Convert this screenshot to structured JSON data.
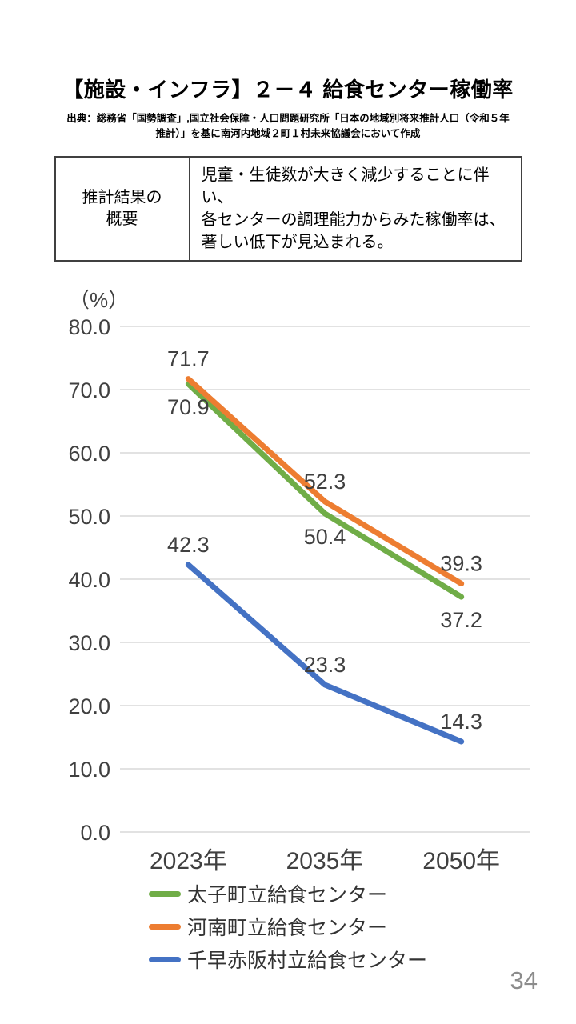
{
  "title": "【施設・インフラ】２－４ 給食センター稼働率",
  "source": "出典：総務省「国勢調査」,国立社会保障・人口問題研究所「日本の地域別将来推計人口（令和５年\n推計）」を基に南河内地域２町１村未来協議会において作成",
  "summary": {
    "label": "推計結果の\n概要",
    "text": "児童・生徒数が大きく減少することに伴い、\n各センターの調理能力からみた稼働率は、\n著しい低下が見込まれる。"
  },
  "page_number": "34",
  "chart_data": {
    "type": "line",
    "title": "給食センター稼働率",
    "unit_label": "（%）",
    "categories": [
      "2023年",
      "2035年",
      "2050年"
    ],
    "series": [
      {
        "name": "太子町立給食センター",
        "values": [
          70.9,
          50.4,
          37.2
        ],
        "color": "#70AD47",
        "label_position": "below"
      },
      {
        "name": "河南町立給食センター",
        "values": [
          71.7,
          52.3,
          39.3
        ],
        "color": "#ED7D31",
        "label_position": "above"
      },
      {
        "name": "千早赤阪村立給食センター",
        "values": [
          42.3,
          23.3,
          14.3
        ],
        "color": "#4472C4",
        "label_position": "above"
      }
    ],
    "ylim": [
      0,
      80
    ],
    "ytick_step": 10,
    "grid": true,
    "legend_position": "bottom",
    "colors": {
      "grid": "#d9d9d9",
      "axis_text": "#404040",
      "data_label_text": "#404040"
    }
  }
}
